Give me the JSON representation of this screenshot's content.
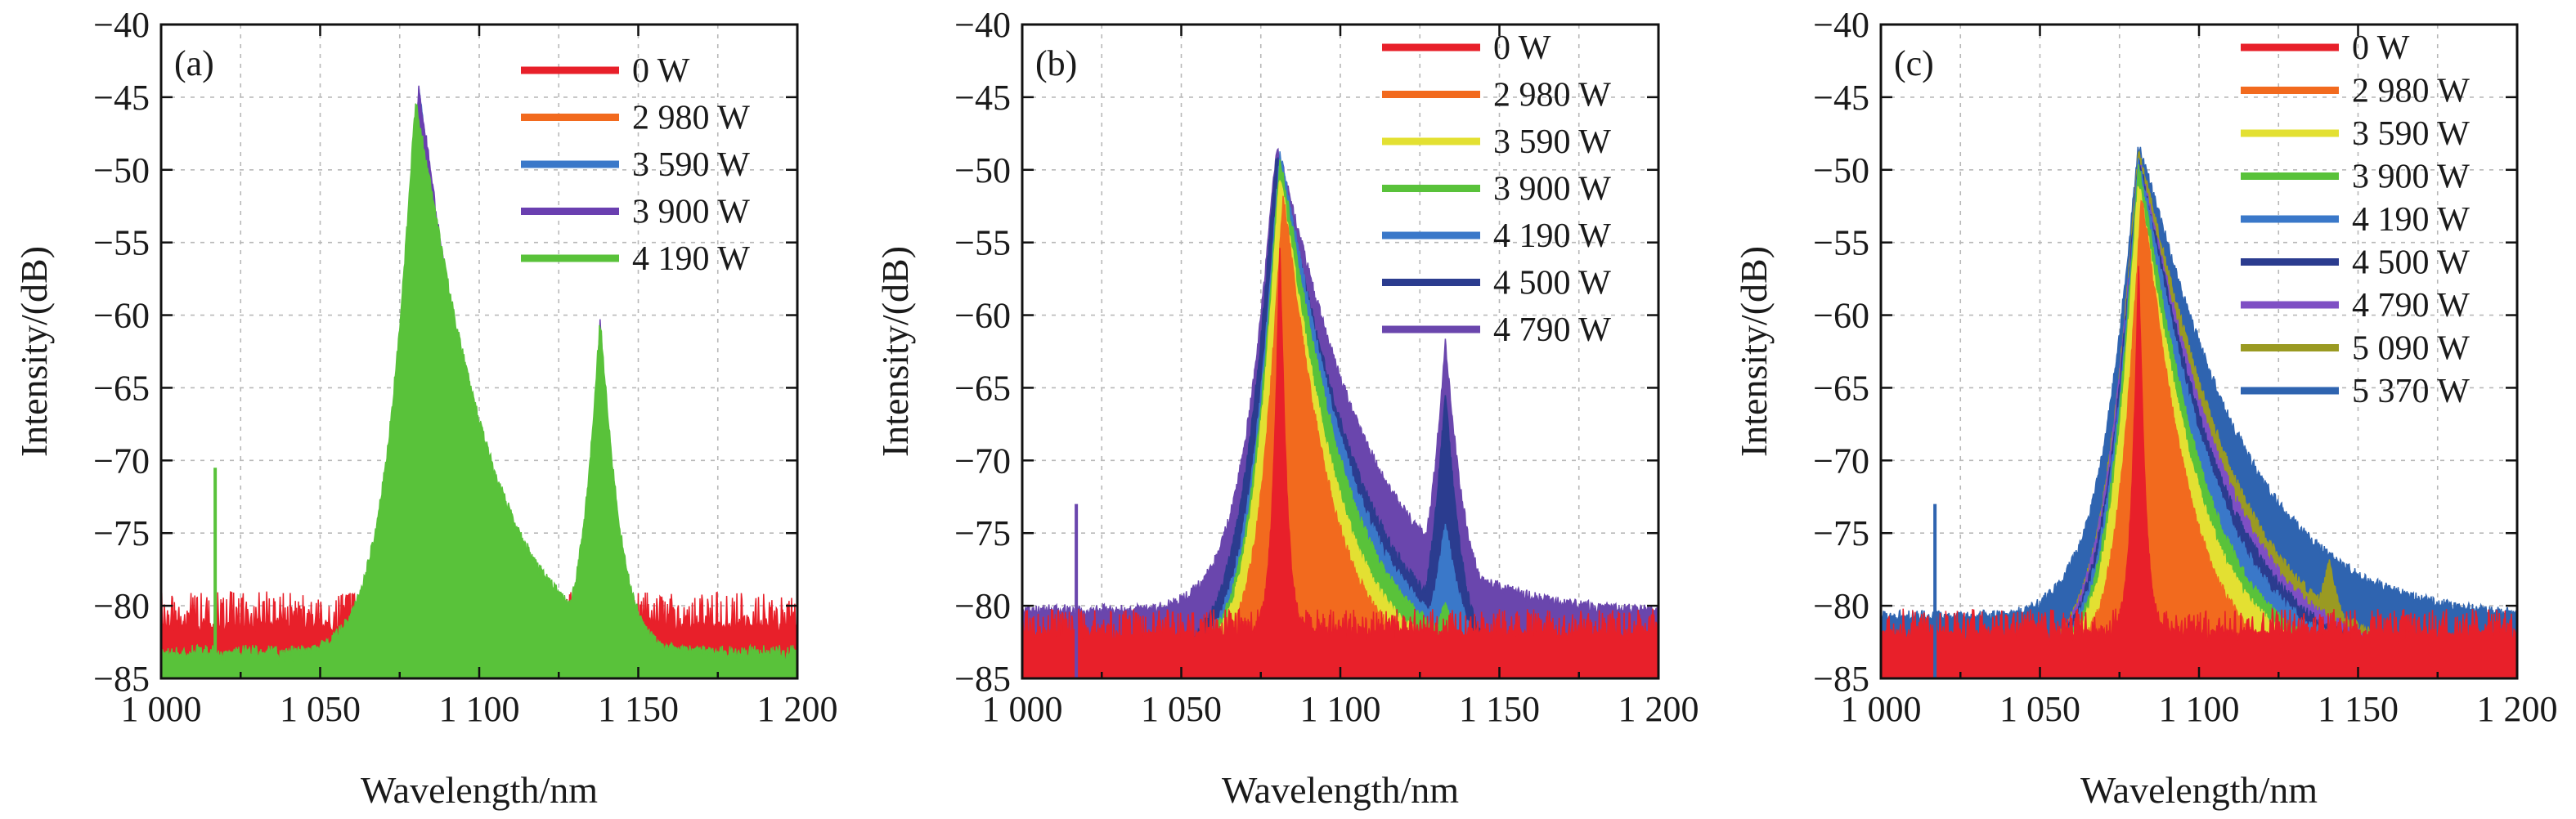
{
  "chart_data": [
    {
      "type": "area",
      "panel_label": "(a)",
      "xlabel": "Wavelength/nm",
      "ylabel": "Intensity/(dB)",
      "xlim": [
        1000,
        1200
      ],
      "ylim": [
        -85,
        -40
      ],
      "x_ticks": [
        1000,
        1050,
        1100,
        1150,
        1200
      ],
      "x_tick_labels": [
        "1 000",
        "1 050",
        "1 100",
        "1 150",
        "1 200"
      ],
      "y_ticks": [
        -40,
        -45,
        -50,
        -55,
        -60,
        -65,
        -70,
        -75,
        -80,
        -85
      ],
      "y_tick_labels": [
        "-40",
        "-45",
        "-50",
        "-55",
        "-60",
        "-65",
        "-70",
        "-75",
        "-80",
        "-85"
      ],
      "grid": true,
      "legend_placement": "top-right",
      "spike": {
        "x": 1017,
        "y": -70.5
      },
      "series": [
        {
          "name": "0 W",
          "color": "#e8202a",
          "floor": -81.5,
          "noise": 2.5,
          "peaks": [
            {
              "x": 1081,
              "y": -57,
              "wl": 2.2,
              "wr": 2.2
            }
          ]
        },
        {
          "name": "2 980 W",
          "color": "#f26a1e",
          "floor": -84,
          "noise": 0.6,
          "peaks": [
            {
              "x": 1082,
              "y": -49,
              "wl": 7,
              "wr": 13
            },
            {
              "x": 1137,
              "y": -83,
              "wl": 4,
              "wr": 4
            }
          ]
        },
        {
          "name": "3 590 W",
          "color": "#3a78c9",
          "floor": -84,
          "noise": 0.5,
          "peaks": [
            {
              "x": 1081,
              "y": -44.5,
              "wl": 7.5,
              "wr": 17
            },
            {
              "x": 1138,
              "y": -67.5,
              "wl": 4.5,
              "wr": 5
            }
          ]
        },
        {
          "name": "3 900 W",
          "color": "#6a3fb0",
          "floor": -84,
          "noise": 0.5,
          "peaks": [
            {
              "x": 1081,
              "y": -44.5,
              "wl": 8,
              "wr": 19
            },
            {
              "x": 1138,
              "y": -60.5,
              "wl": 4.5,
              "wr": 5
            }
          ]
        },
        {
          "name": "4 190 W",
          "color": "#59c23a",
          "floor": -83.5,
          "noise": 0.8,
          "peaks": [
            {
              "x": 1080,
              "y": -45.5,
              "wl": 9,
              "wr": 23
            },
            {
              "x": 1138,
              "y": -60.5,
              "wl": 5.5,
              "wr": 6.5
            }
          ]
        }
      ]
    },
    {
      "type": "area",
      "panel_label": "(b)",
      "xlabel": "Wavelength/nm",
      "ylabel": "Intensity/(dB)",
      "xlim": [
        1000,
        1200
      ],
      "ylim": [
        -85,
        -40
      ],
      "x_ticks": [
        1000,
        1050,
        1100,
        1150,
        1200
      ],
      "x_tick_labels": [
        "1 000",
        "1 050",
        "1 100",
        "1 150",
        "1 200"
      ],
      "y_ticks": [
        -40,
        -45,
        -50,
        -55,
        -60,
        -65,
        -70,
        -75,
        -80,
        -85
      ],
      "y_tick_labels": [
        "-40",
        "-45",
        "-50",
        "-55",
        "-60",
        "-65",
        "-70",
        "-75",
        "-80",
        "-85"
      ],
      "grid": true,
      "legend_placement": "top-right",
      "spike": {
        "x": 1017,
        "y": -73
      },
      "series": [
        {
          "name": "4 790 W",
          "color": "#6a46ad",
          "floor": -80.5,
          "noise": 0.6,
          "peaks": [
            {
              "x": 1080,
              "y": -48.5,
              "wl": 10,
              "wr": 28
            },
            {
              "x": 1133,
              "y": -62,
              "wl": 5,
              "wr": 6
            }
          ]
        },
        {
          "name": "4 500 W",
          "color": "#2b3c8f",
          "floor": -84,
          "noise": 0.5,
          "peaks": [
            {
              "x": 1080,
              "y": -49,
              "wl": 10,
              "wr": 26
            },
            {
              "x": 1133,
              "y": -65.5,
              "wl": 5,
              "wr": 5.5
            }
          ]
        },
        {
          "name": "4 190 W",
          "color": "#3a78c9",
          "floor": -84,
          "noise": 0.5,
          "peaks": [
            {
              "x": 1081,
              "y": -49,
              "wl": 9,
              "wr": 23
            },
            {
              "x": 1133,
              "y": -74.5,
              "wl": 5,
              "wr": 6
            }
          ]
        },
        {
          "name": "3 900 W",
          "color": "#59c23a",
          "floor": -84,
          "noise": 0.5,
          "peaks": [
            {
              "x": 1081,
              "y": -49.5,
              "wl": 8.5,
              "wr": 21
            },
            {
              "x": 1133,
              "y": -80,
              "wl": 5,
              "wr": 5
            }
          ]
        },
        {
          "name": "3 590 W",
          "color": "#e3e032",
          "floor": -84,
          "noise": 0.5,
          "peaks": [
            {
              "x": 1081,
              "y": -50.5,
              "wl": 8,
              "wr": 18
            }
          ]
        },
        {
          "name": "2 980 W",
          "color": "#f26a1e",
          "floor": -84,
          "noise": 0.5,
          "peaks": [
            {
              "x": 1082,
              "y": -52,
              "wl": 7,
              "wr": 15
            }
          ]
        },
        {
          "name": "0 W",
          "color": "#e8202a",
          "floor": -82,
          "noise": 1.8,
          "peaks": [
            {
              "x": 1081,
              "y": -55.5,
              "wl": 2.3,
              "wr": 2.3
            }
          ]
        }
      ],
      "legend_order": [
        "0 W",
        "2 980 W",
        "3 590 W",
        "3 900 W",
        "4 190 W",
        "4 500 W",
        "4 790 W"
      ]
    },
    {
      "type": "area",
      "panel_label": "(c)",
      "xlabel": "Wavelength/nm",
      "ylabel": "Intensity/(dB)",
      "xlim": [
        1000,
        1200
      ],
      "ylim": [
        -85,
        -40
      ],
      "x_ticks": [
        1000,
        1050,
        1100,
        1150,
        1200
      ],
      "x_tick_labels": [
        "1 000",
        "1 050",
        "1 100",
        "1 150",
        "1 200"
      ],
      "y_ticks": [
        -40,
        -45,
        -50,
        -55,
        -60,
        -65,
        -70,
        -75,
        -80,
        -85
      ],
      "y_tick_labels": [
        "-40",
        "-45",
        "-50",
        "-55",
        "-60",
        "-65",
        "-70",
        "-75",
        "-80",
        "-85"
      ],
      "grid": true,
      "legend_placement": "top-right",
      "spike": {
        "x": 1017,
        "y": -73
      },
      "series": [
        {
          "name": "5 370 W",
          "color": "#2f64b0",
          "floor": -81,
          "noise": 0.7,
          "peaks": [
            {
              "x": 1081,
              "y": -48.5,
              "wl": 11,
              "wr": 33
            },
            {
              "x": 1141,
              "y": -76.5,
              "wl": 6,
              "wr": 5
            }
          ]
        },
        {
          "name": "5 090 W",
          "color": "#9a9a22",
          "floor": -84,
          "noise": 0.5,
          "peaks": [
            {
              "x": 1081,
              "y": -49,
              "wl": 10,
              "wr": 30
            },
            {
              "x": 1141,
              "y": -77,
              "wl": 6,
              "wr": 5
            }
          ]
        },
        {
          "name": "4 790 W",
          "color": "#7f4fc4",
          "floor": -84,
          "noise": 0.5,
          "peaks": [
            {
              "x": 1081,
              "y": -49.5,
              "wl": 10,
              "wr": 28
            }
          ]
        },
        {
          "name": "4 500 W",
          "color": "#2b3c8f",
          "floor": -84,
          "noise": 0.5,
          "peaks": [
            {
              "x": 1081,
              "y": -49.5,
              "wl": 9.5,
              "wr": 26
            }
          ]
        },
        {
          "name": "4 190 W",
          "color": "#3a78c9",
          "floor": -84,
          "noise": 0.5,
          "peaks": [
            {
              "x": 1081,
              "y": -49.5,
              "wl": 9,
              "wr": 24
            }
          ]
        },
        {
          "name": "3 900 W",
          "color": "#59c23a",
          "floor": -84,
          "noise": 0.5,
          "peaks": [
            {
              "x": 1081,
              "y": -50,
              "wl": 8.5,
              "wr": 21
            }
          ]
        },
        {
          "name": "3 590 W",
          "color": "#e3e032",
          "floor": -84,
          "noise": 0.5,
          "peaks": [
            {
              "x": 1081,
              "y": -51,
              "wl": 8,
              "wr": 19
            }
          ]
        },
        {
          "name": "2 980 W",
          "color": "#f26a1e",
          "floor": -84,
          "noise": 0.5,
          "peaks": [
            {
              "x": 1082,
              "y": -52,
              "wl": 7,
              "wr": 15
            }
          ]
        },
        {
          "name": "0 W",
          "color": "#e8202a",
          "floor": -82,
          "noise": 1.8,
          "peaks": [
            {
              "x": 1081,
              "y": -56.5,
              "wl": 2.3,
              "wr": 2.3
            }
          ]
        }
      ],
      "legend_order": [
        "0 W",
        "2 980 W",
        "3 590 W",
        "3 900 W",
        "4 190 W",
        "4 500 W",
        "4 790 W",
        "5 090 W",
        "5 370 W"
      ]
    }
  ]
}
